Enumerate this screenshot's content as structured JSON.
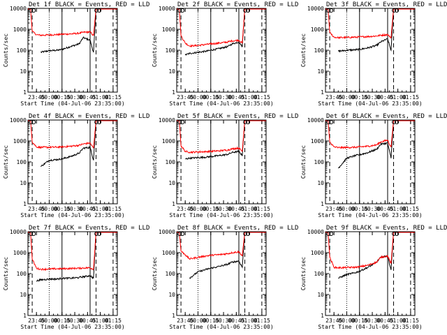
{
  "figure": {
    "xlabel": "Start Time (04-Jul-06 23:35:00)",
    "ylabel": "Counts/sec",
    "x_tick_labels": [
      "23:45",
      "00:00",
      "00:15",
      "00:30",
      "00:45",
      "01:00",
      "01:15"
    ],
    "y_tick_labels": [
      "1",
      "10",
      "100",
      "1000",
      "10000"
    ],
    "series_colors": {
      "events": "#000000",
      "lld": "#ff0000"
    },
    "panels": [
      {
        "title": "Det 1f BLACK = Events, RED = LLD"
      },
      {
        "title": "Det 2f BLACK = Events, RED = LLD"
      },
      {
        "title": "Det 3f BLACK = Events, RED = LLD"
      },
      {
        "title": "Det 4f BLACK = Events, RED = LLD"
      },
      {
        "title": "Det 5f BLACK = Events, RED = LLD"
      },
      {
        "title": "Det 6f BLACK = Events, RED = LLD"
      },
      {
        "title": "Det 7f BLACK = Events, RED = LLD"
      },
      {
        "title": "Det 8f BLACK = Events, RED = LLD"
      },
      {
        "title": "Det 9f BLACK = Events, RED = LLD"
      }
    ]
  },
  "chart_data": [
    {
      "type": "line",
      "title": "Det 1f BLACK = Events, RED = LLD",
      "xlabel": "Start Time (04-Jul-06 23:35:00)",
      "ylabel": "Counts/sec",
      "y_scale": "log",
      "ylim": [
        1,
        10000
      ],
      "xlim": [
        "23:35",
        "01:20"
      ],
      "x": [
        "23:38",
        "23:40",
        "23:45",
        "23:50",
        "00:00",
        "00:10",
        "00:15",
        "00:25",
        "00:35",
        "00:40",
        "00:48",
        "00:52",
        "00:55"
      ],
      "series": [
        {
          "name": "Events",
          "values": [
            null,
            null,
            null,
            80,
            95,
            100,
            110,
            150,
            200,
            400,
            300,
            80,
            10000
          ]
        },
        {
          "name": "LLD",
          "values": [
            10000,
            800,
            550,
            520,
            540,
            560,
            580,
            600,
            650,
            720,
            750,
            500,
            10000
          ]
        }
      ],
      "vlines": {
        "solid": [
          "00:15",
          "00:48"
        ],
        "dotted": [
          "00:00"
        ],
        "dashed": [
          "23:40",
          "00:55",
          "01:15"
        ]
      }
    },
    {
      "type": "line",
      "title": "Det 2f BLACK = Events, RED = LLD",
      "xlabel": "Start Time (04-Jul-06 23:35:00)",
      "ylabel": "Counts/sec",
      "y_scale": "log",
      "ylim": [
        1,
        10000
      ],
      "xlim": [
        "23:35",
        "01:20"
      ],
      "x": [
        "23:38",
        "23:40",
        "23:45",
        "23:50",
        "00:00",
        "00:10",
        "00:15",
        "00:25",
        "00:35",
        "00:40",
        "00:48",
        "00:52",
        "00:55"
      ],
      "series": [
        {
          "name": "Events",
          "values": [
            null,
            null,
            60,
            70,
            80,
            90,
            100,
            120,
            150,
            200,
            250,
            150,
            10000
          ]
        },
        {
          "name": "LLD",
          "values": [
            10000,
            500,
            220,
            160,
            170,
            190,
            200,
            220,
            250,
            280,
            300,
            220,
            10000
          ]
        }
      ],
      "vlines": {
        "solid": [
          "00:15",
          "00:48"
        ],
        "dotted": [
          "00:00"
        ],
        "dashed": [
          "23:40",
          "00:55",
          "01:15"
        ]
      }
    },
    {
      "type": "line",
      "title": "Det 3f BLACK = Events, RED = LLD",
      "xlabel": "Start Time (04-Jul-06 23:35:00)",
      "ylabel": "Counts/sec",
      "y_scale": "log",
      "ylim": [
        1,
        10000
      ],
      "xlim": [
        "23:35",
        "01:20"
      ],
      "x": [
        "23:38",
        "23:40",
        "23:45",
        "23:50",
        "00:00",
        "00:10",
        "00:15",
        "00:25",
        "00:35",
        "00:40",
        "00:48",
        "00:52",
        "00:55"
      ],
      "series": [
        {
          "name": "Events",
          "values": [
            null,
            null,
            null,
            90,
            100,
            105,
            110,
            130,
            170,
            250,
            350,
            100,
            10000
          ]
        },
        {
          "name": "LLD",
          "values": [
            10000,
            700,
            420,
            400,
            410,
            420,
            430,
            450,
            480,
            520,
            560,
            400,
            10000
          ]
        }
      ],
      "vlines": {
        "solid": [
          "00:15",
          "00:48"
        ],
        "dotted": [
          "00:00"
        ],
        "dashed": [
          "23:40",
          "00:55",
          "01:15"
        ]
      }
    },
    {
      "type": "line",
      "title": "Det 4f BLACK = Events, RED = LLD",
      "xlabel": "Start Time (04-Jul-06 23:35:00)",
      "ylabel": "Counts/sec",
      "y_scale": "log",
      "ylim": [
        1,
        10000
      ],
      "xlim": [
        "23:35",
        "01:20"
      ],
      "x": [
        "23:38",
        "23:40",
        "23:45",
        "23:50",
        "00:00",
        "00:10",
        "00:15",
        "00:25",
        "00:35",
        "00:40",
        "00:48",
        "00:52",
        "00:55"
      ],
      "series": [
        {
          "name": "Events",
          "values": [
            null,
            null,
            null,
            60,
            120,
            130,
            140,
            180,
            260,
            450,
            500,
            120,
            10000
          ]
        },
        {
          "name": "LLD",
          "values": [
            10000,
            900,
            520,
            500,
            500,
            510,
            520,
            560,
            620,
            720,
            800,
            450,
            10000
          ]
        }
      ],
      "vlines": {
        "solid": [
          "00:15",
          "00:48"
        ],
        "dotted": [
          "00:00"
        ],
        "dashed": [
          "23:40",
          "00:55",
          "01:15"
        ]
      }
    },
    {
      "type": "line",
      "title": "Det 5f BLACK = Events, RED = LLD",
      "xlabel": "Start Time (04-Jul-06 23:35:00)",
      "ylabel": "Counts/sec",
      "y_scale": "log",
      "ylim": [
        1,
        10000
      ],
      "xlim": [
        "23:35",
        "01:20"
      ],
      "x": [
        "23:38",
        "23:40",
        "23:45",
        "23:50",
        "00:00",
        "00:10",
        "00:15",
        "00:25",
        "00:35",
        "00:40",
        "00:48",
        "00:52",
        "00:55"
      ],
      "series": [
        {
          "name": "Events",
          "values": [
            null,
            null,
            140,
            150,
            160,
            170,
            180,
            200,
            230,
            280,
            320,
            200,
            10000
          ]
        },
        {
          "name": "LLD",
          "values": [
            10000,
            600,
            320,
            290,
            300,
            310,
            320,
            340,
            370,
            420,
            460,
            320,
            10000
          ]
        }
      ],
      "vlines": {
        "solid": [
          "00:15",
          "00:48"
        ],
        "dotted": [
          "00:00"
        ],
        "dashed": [
          "23:40",
          "00:55",
          "01:15"
        ]
      }
    },
    {
      "type": "line",
      "title": "Det 6f BLACK = Events, RED = LLD",
      "xlabel": "Start Time (04-Jul-06 23:35:00)",
      "ylabel": "Counts/sec",
      "y_scale": "log",
      "ylim": [
        1,
        10000
      ],
      "xlim": [
        "23:35",
        "01:20"
      ],
      "x": [
        "23:38",
        "23:40",
        "23:45",
        "23:50",
        "00:00",
        "00:10",
        "00:15",
        "00:25",
        "00:35",
        "00:40",
        "00:48",
        "00:52",
        "00:55"
      ],
      "series": [
        {
          "name": "Events",
          "values": [
            null,
            null,
            null,
            50,
            150,
            200,
            220,
            280,
            400,
            700,
            800,
            150,
            10000
          ]
        },
        {
          "name": "LLD",
          "values": [
            10000,
            900,
            520,
            480,
            490,
            500,
            520,
            560,
            650,
            900,
            1100,
            500,
            10000
          ]
        }
      ],
      "vlines": {
        "solid": [
          "00:15",
          "00:48"
        ],
        "dotted": [
          "00:00"
        ],
        "dashed": [
          "23:40",
          "00:55",
          "01:15"
        ]
      }
    },
    {
      "type": "line",
      "title": "Det 7f BLACK = Events, RED = LLD",
      "xlabel": "Start Time (04-Jul-06 23:35:00)",
      "ylabel": "Counts/sec",
      "y_scale": "log",
      "ylim": [
        1,
        10000
      ],
      "xlim": [
        "23:35",
        "01:20"
      ],
      "x": [
        "23:38",
        "23:40",
        "23:45",
        "23:50",
        "00:00",
        "00:10",
        "00:15",
        "00:25",
        "00:35",
        "00:40",
        "00:48",
        "00:52",
        "00:55"
      ],
      "series": [
        {
          "name": "Events",
          "values": [
            null,
            null,
            45,
            50,
            55,
            55,
            60,
            60,
            65,
            70,
            80,
            60,
            10000
          ]
        },
        {
          "name": "LLD",
          "values": [
            10000,
            500,
            180,
            160,
            165,
            170,
            170,
            175,
            180,
            185,
            190,
            160,
            10000
          ]
        }
      ],
      "vlines": {
        "solid": [
          "00:15",
          "00:48"
        ],
        "dotted": [
          "00:00"
        ],
        "dashed": [
          "23:40",
          "00:55",
          "01:15"
        ]
      }
    },
    {
      "type": "line",
      "title": "Det 8f BLACK = Events, RED = LLD",
      "xlabel": "Start Time (04-Jul-06 23:35:00)",
      "ylabel": "Counts/sec",
      "y_scale": "log",
      "ylim": [
        1,
        10000
      ],
      "xlim": [
        "23:35",
        "01:20"
      ],
      "x": [
        "23:38",
        "23:40",
        "23:45",
        "23:50",
        "00:00",
        "00:10",
        "00:15",
        "00:25",
        "00:35",
        "00:40",
        "00:48",
        "00:52",
        "00:55"
      ],
      "series": [
        {
          "name": "Events",
          "values": [
            null,
            null,
            null,
            60,
            120,
            160,
            180,
            220,
            280,
            350,
            400,
            200,
            10000
          ]
        },
        {
          "name": "LLD",
          "values": [
            10000,
            1200,
            800,
            500,
            600,
            700,
            750,
            800,
            900,
            1000,
            1100,
            700,
            10000
          ]
        }
      ],
      "vlines": {
        "solid": [
          "00:15",
          "00:48"
        ],
        "dotted": [
          "00:00"
        ],
        "dashed": [
          "23:40",
          "00:55",
          "01:15"
        ]
      }
    },
    {
      "type": "line",
      "title": "Det 9f BLACK = Events, RED = LLD",
      "xlabel": "Start Time (04-Jul-06 23:35:00)",
      "ylabel": "Counts/sec",
      "y_scale": "log",
      "ylim": [
        1,
        10000
      ],
      "xlim": [
        "23:35",
        "01:20"
      ],
      "x": [
        "23:38",
        "23:40",
        "23:45",
        "23:50",
        "00:00",
        "00:10",
        "00:15",
        "00:25",
        "00:35",
        "00:40",
        "00:48",
        "00:52",
        "00:55"
      ],
      "series": [
        {
          "name": "Events",
          "values": [
            null,
            null,
            null,
            60,
            90,
            110,
            130,
            200,
            350,
            600,
            700,
            150,
            10000
          ]
        },
        {
          "name": "LLD",
          "values": [
            10000,
            600,
            200,
            190,
            195,
            200,
            210,
            250,
            350,
            600,
            700,
            300,
            10000
          ]
        }
      ],
      "vlines": {
        "solid": [
          "00:15",
          "00:48"
        ],
        "dotted": [
          "00:00"
        ],
        "dashed": [
          "23:40",
          "00:55",
          "01:15"
        ]
      }
    }
  ]
}
